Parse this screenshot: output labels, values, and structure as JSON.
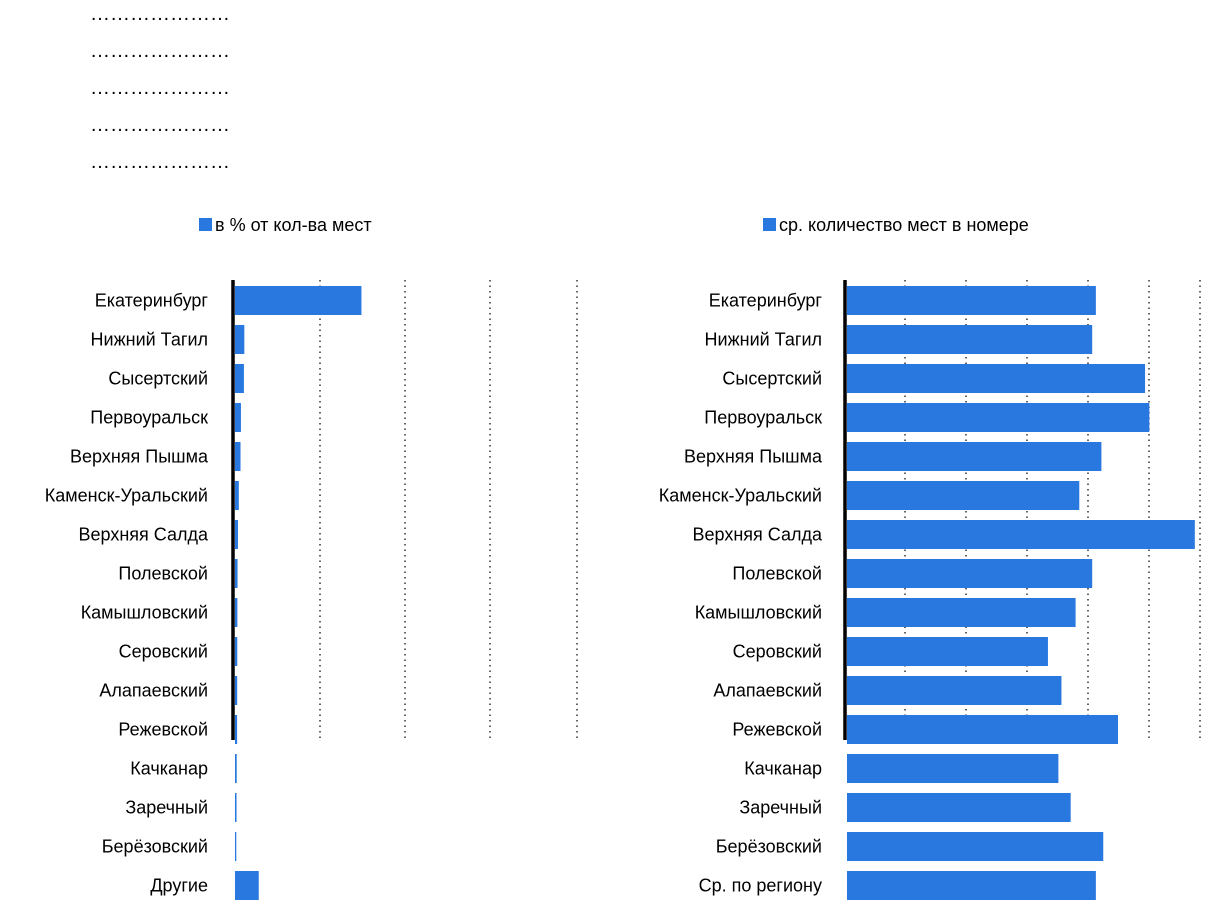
{
  "header_dots": [
    "…………………",
    "…………………",
    "…………………",
    "…………………",
    "…………………"
  ],
  "colors": {
    "bar": "#2878E0",
    "axis": "#000000",
    "grid": "#000000"
  },
  "chart_data": [
    {
      "type": "bar",
      "orientation": "horizontal",
      "legend": "в % от кол-ва мест",
      "legend_placement": "top-center",
      "grid": true,
      "xlim": [
        0,
        35
      ],
      "categories": [
        "Екатеринбург",
        "Нижний Тагил",
        "Сысертский",
        "Первоуральск",
        "Верхняя Пышма",
        "Каменск-Уральский",
        "Верхняя Салда",
        "Полевской",
        "Камышловский",
        "Серовский",
        "Алапаевский",
        "Режевской",
        "Качканар",
        "Заречный",
        "Берёзовский",
        "Другие"
      ],
      "values": [
        14.9,
        1.1,
        1.05,
        0.7,
        0.65,
        0.45,
        0.35,
        0.3,
        0.28,
        0.27,
        0.26,
        0.25,
        0.2,
        0.18,
        0.15,
        2.8
      ]
    },
    {
      "type": "bar",
      "orientation": "horizontal",
      "legend": "ср. количество мест в номере",
      "legend_placement": "top-center",
      "grid": true,
      "xlim": [
        0,
        6.2
      ],
      "categories": [
        "Екатеринбург",
        "Нижний Тагил",
        "Сысертский",
        "Первоуральск",
        "Верхняя Пышма",
        "Каменск-Уральский",
        "Верхняя Салда",
        "Полевской",
        "Камышловский",
        "Серовский",
        "Алапаевский",
        "Режевской",
        "Качканар",
        "Заречный",
        "Берёзовский",
        "Ср. по региону"
      ],
      "values": [
        4.05,
        3.99,
        4.85,
        4.92,
        4.14,
        3.78,
        5.66,
        3.99,
        3.72,
        3.27,
        3.49,
        4.41,
        3.44,
        3.64,
        4.17,
        4.05
      ]
    }
  ]
}
